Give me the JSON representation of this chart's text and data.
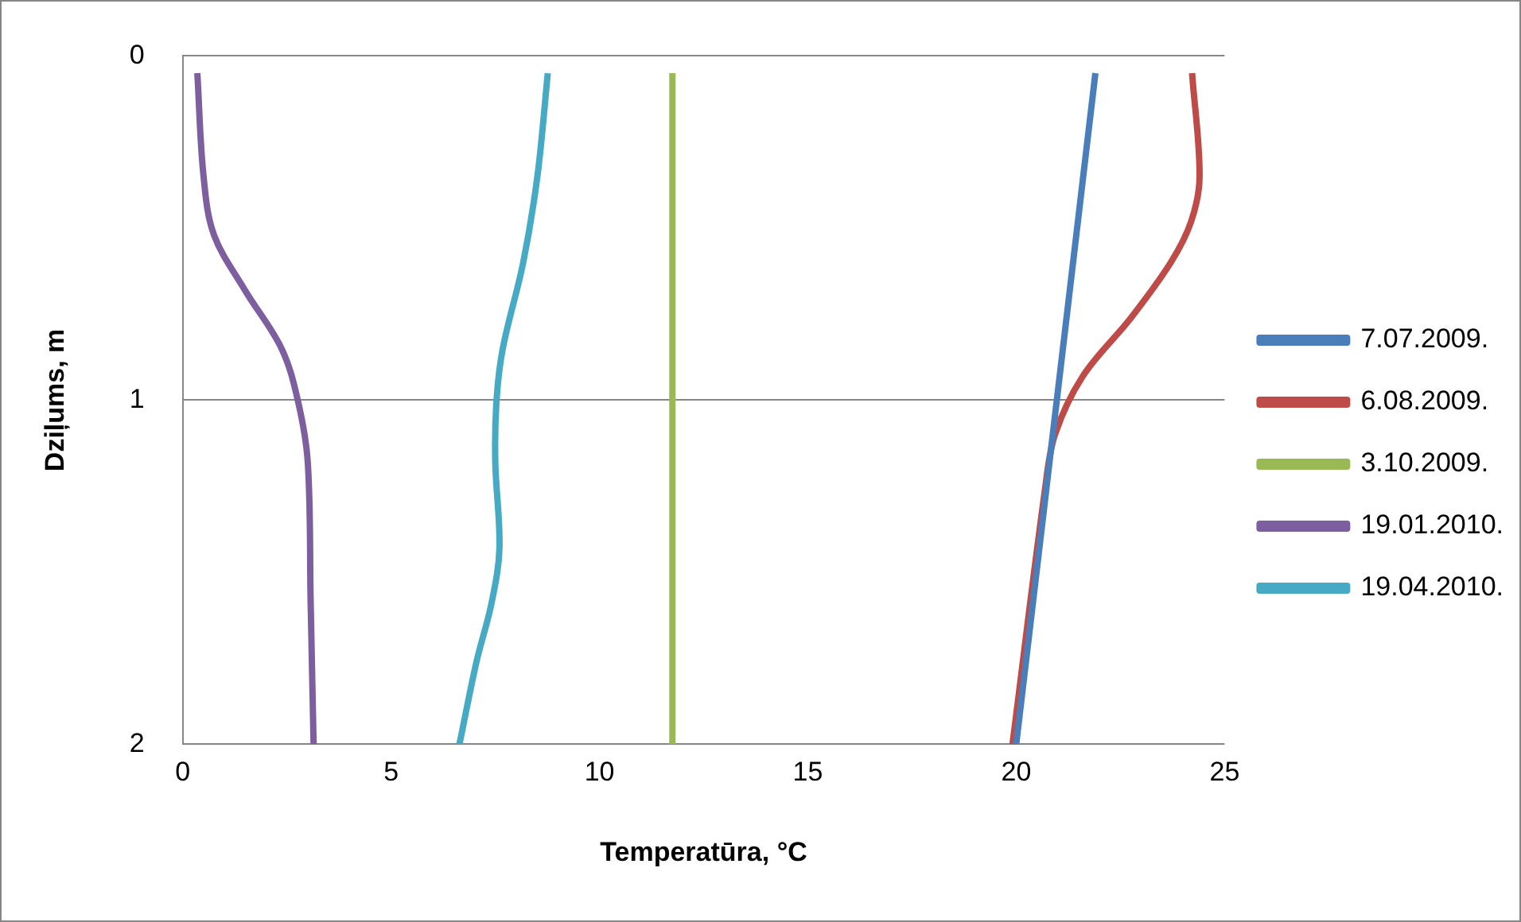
{
  "chart_data": {
    "type": "line",
    "xlabel": "Temperatūra, °C",
    "ylabel": "Dziļums, m",
    "xlim": [
      0,
      25
    ],
    "xticks": [
      0,
      5,
      10,
      15,
      20,
      25
    ],
    "ylim": [
      2,
      0
    ],
    "yticks": [
      0,
      1,
      2
    ],
    "grid": "y",
    "legend": "right",
    "marker": "none",
    "line_style": "solid",
    "series": [
      {
        "name": "7.07.2009.",
        "color": "#4a7ebb",
        "x": [
          21.9,
          20.0
        ],
        "values": [
          0.05,
          2
        ]
      },
      {
        "name": "6.08.2009.",
        "color": "#be4b48",
        "x": [
          24.22,
          24.4,
          24.2,
          23.71,
          22.76,
          21.6,
          20.93,
          20.69,
          19.91
        ],
        "values": [
          0.05,
          0.35,
          0.48,
          0.6,
          0.76,
          0.93,
          1.1,
          1.26,
          2
        ]
      },
      {
        "name": "3.10.2009.",
        "color": "#98b954",
        "x": [
          11.75,
          11.75
        ],
        "values": [
          0.05,
          2
        ]
      },
      {
        "name": "19.01.2010.",
        "color": "#7d5fa0",
        "x": [
          0.35,
          0.5,
          0.75,
          1.49,
          2.37,
          2.76,
          3.0,
          3.07,
          3.14
        ],
        "values": [
          0.05,
          0.35,
          0.52,
          0.68,
          0.85,
          1.0,
          1.18,
          1.59,
          2
        ]
      },
      {
        "name": "19.04.2010.",
        "color": "#46aac5",
        "x": [
          8.76,
          8.51,
          8.17,
          7.68,
          7.53,
          7.5,
          7.6,
          7.41,
          7.05,
          6.64
        ],
        "values": [
          0.05,
          0.35,
          0.6,
          0.85,
          1.0,
          1.18,
          1.43,
          1.59,
          1.76,
          2
        ]
      }
    ]
  }
}
